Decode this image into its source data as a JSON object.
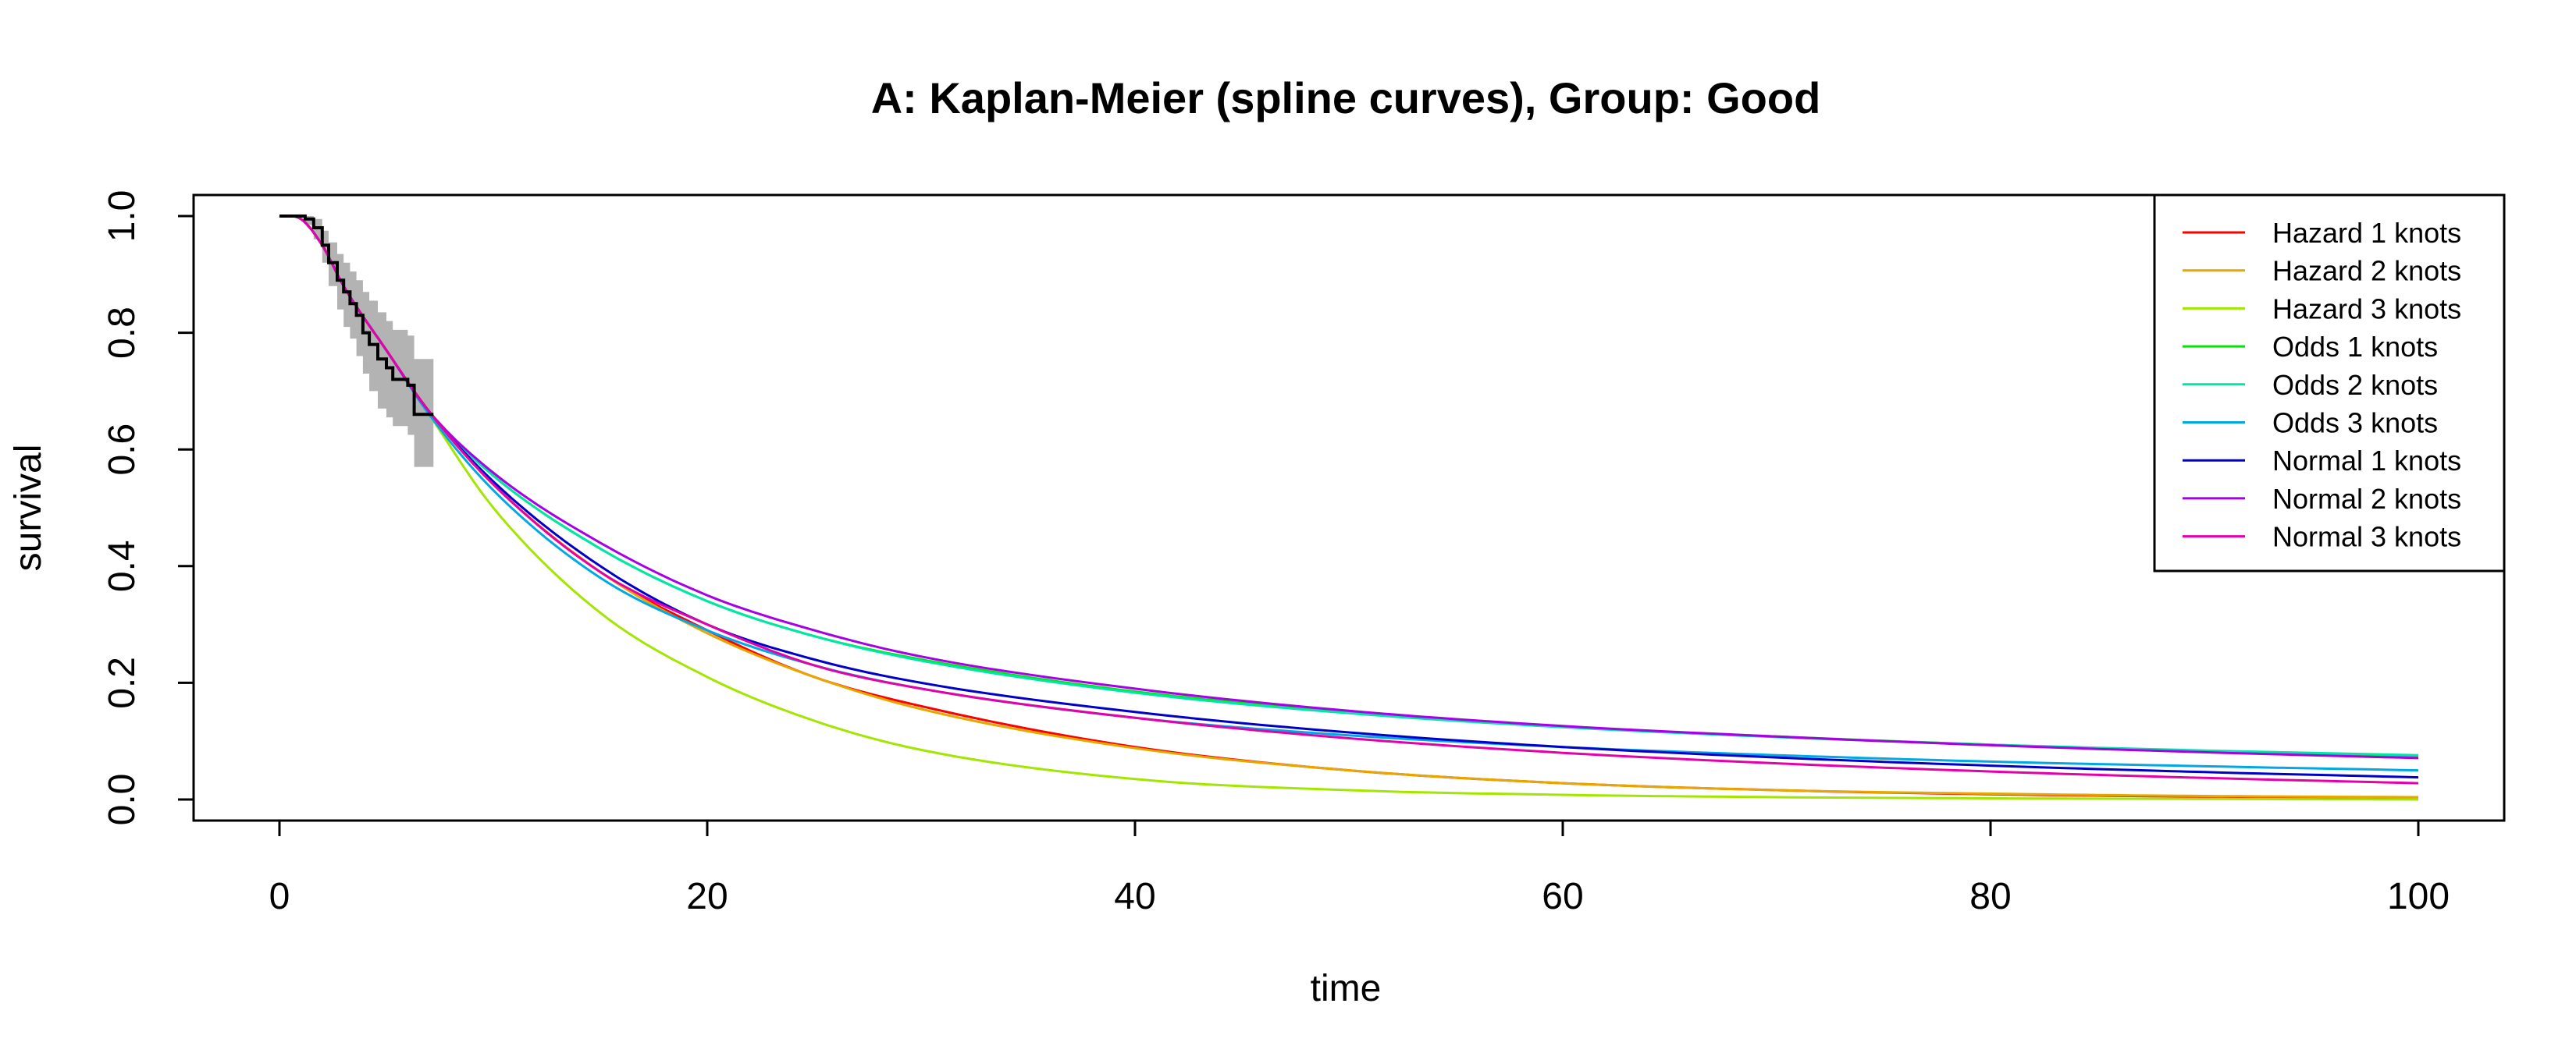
{
  "chart_data": {
    "type": "line",
    "title": "A: Kaplan-Meier (spline curves), Group: Good",
    "xlabel": "time",
    "ylabel": "survival",
    "xlim": [
      0,
      100
    ],
    "ylim": [
      0,
      1
    ],
    "x_ticks": [
      "0",
      "20",
      "40",
      "60",
      "80",
      "100"
    ],
    "y_ticks": [
      "0.0",
      "0.2",
      "0.4",
      "0.6",
      "0.8",
      "1.0"
    ],
    "legend_position": "top-right",
    "grid": false,
    "km": {
      "color": "#000000",
      "ci_color": "#b3b3b3",
      "steps": [
        [
          0,
          1.0
        ],
        [
          1.2,
          0.995
        ],
        [
          1.6,
          0.98
        ],
        [
          2.0,
          0.95
        ],
        [
          2.3,
          0.92
        ],
        [
          2.7,
          0.89
        ],
        [
          3.0,
          0.87
        ],
        [
          3.3,
          0.85
        ],
        [
          3.6,
          0.83
        ],
        [
          3.9,
          0.8
        ],
        [
          4.2,
          0.78
        ],
        [
          4.6,
          0.755
        ],
        [
          5.0,
          0.74
        ],
        [
          5.3,
          0.72
        ],
        [
          6.0,
          0.71
        ],
        [
          6.3,
          0.66
        ],
        [
          7.2,
          0.66
        ]
      ],
      "ci_lower": [
        [
          0,
          1.0
        ],
        [
          1.2,
          0.985
        ],
        [
          1.6,
          0.96
        ],
        [
          2.0,
          0.92
        ],
        [
          2.3,
          0.88
        ],
        [
          2.7,
          0.84
        ],
        [
          3.0,
          0.81
        ],
        [
          3.3,
          0.79
        ],
        [
          3.6,
          0.76
        ],
        [
          3.9,
          0.73
        ],
        [
          4.2,
          0.7
        ],
        [
          4.6,
          0.67
        ],
        [
          5.0,
          0.655
        ],
        [
          5.3,
          0.64
        ],
        [
          6.0,
          0.625
        ],
        [
          6.3,
          0.57
        ],
        [
          7.2,
          0.57
        ]
      ],
      "ci_upper": [
        [
          0,
          1.0
        ],
        [
          1.2,
          1.0
        ],
        [
          1.6,
          0.995
        ],
        [
          2.0,
          0.975
        ],
        [
          2.3,
          0.955
        ],
        [
          2.7,
          0.935
        ],
        [
          3.0,
          0.92
        ],
        [
          3.3,
          0.905
        ],
        [
          3.6,
          0.89
        ],
        [
          3.9,
          0.87
        ],
        [
          4.2,
          0.855
        ],
        [
          4.6,
          0.835
        ],
        [
          5.0,
          0.82
        ],
        [
          5.3,
          0.805
        ],
        [
          6.0,
          0.795
        ],
        [
          6.3,
          0.755
        ],
        [
          7.2,
          0.755
        ]
      ]
    },
    "x": [
      0,
      1,
      2,
      3,
      5,
      7,
      10,
      15,
      20,
      25,
      30,
      40,
      50,
      60,
      70,
      80,
      90,
      100
    ],
    "series": [
      {
        "name": "Hazard 1 knots",
        "color": "#ff0000",
        "values": [
          1.0,
          0.995,
          0.95,
          0.88,
          0.77,
          0.665,
          0.54,
          0.39,
          0.29,
          0.21,
          0.16,
          0.09,
          0.05,
          0.028,
          0.016,
          0.009,
          0.005,
          0.003
        ]
      },
      {
        "name": "Hazard 2 knots",
        "color": "#e6a800",
        "values": [
          1.0,
          0.995,
          0.95,
          0.88,
          0.77,
          0.665,
          0.54,
          0.39,
          0.285,
          0.21,
          0.155,
          0.088,
          0.05,
          0.028,
          0.016,
          0.01,
          0.006,
          0.004
        ]
      },
      {
        "name": "Hazard 3 knots",
        "color": "#a3e600",
        "values": [
          1.0,
          0.995,
          0.95,
          0.88,
          0.77,
          0.66,
          0.5,
          0.32,
          0.21,
          0.135,
          0.085,
          0.035,
          0.016,
          0.008,
          0.004,
          0.002,
          0.001,
          0.0
        ]
      },
      {
        "name": "Odds 1 knots",
        "color": "#00e600",
        "values": [
          1.0,
          0.995,
          0.95,
          0.88,
          0.77,
          0.665,
          0.555,
          0.43,
          0.34,
          0.28,
          0.24,
          0.185,
          0.15,
          0.125,
          0.108,
          0.094,
          0.083,
          0.074
        ]
      },
      {
        "name": "Odds 2 knots",
        "color": "#00e6a8",
        "values": [
          1.0,
          0.995,
          0.95,
          0.88,
          0.77,
          0.665,
          0.555,
          0.43,
          0.34,
          0.28,
          0.238,
          0.183,
          0.148,
          0.124,
          0.107,
          0.094,
          0.084,
          0.076
        ]
      },
      {
        "name": "Odds 3 knots",
        "color": "#00a8e6",
        "values": [
          1.0,
          0.995,
          0.95,
          0.88,
          0.77,
          0.66,
          0.53,
          0.38,
          0.29,
          0.23,
          0.19,
          0.14,
          0.11,
          0.09,
          0.076,
          0.065,
          0.057,
          0.05
        ]
      },
      {
        "name": "Normal 1 knots",
        "color": "#0000cc",
        "values": [
          1.0,
          0.995,
          0.95,
          0.88,
          0.77,
          0.665,
          0.545,
          0.4,
          0.3,
          0.24,
          0.2,
          0.15,
          0.115,
          0.09,
          0.072,
          0.058,
          0.047,
          0.038
        ]
      },
      {
        "name": "Normal 2 knots",
        "color": "#a800e6",
        "values": [
          1.0,
          0.995,
          0.95,
          0.88,
          0.77,
          0.665,
          0.56,
          0.44,
          0.35,
          0.29,
          0.245,
          0.19,
          0.152,
          0.126,
          0.108,
          0.093,
          0.081,
          0.071
        ]
      },
      {
        "name": "Normal 3 knots",
        "color": "#e600a8",
        "values": [
          1.0,
          0.995,
          0.95,
          0.88,
          0.77,
          0.665,
          0.54,
          0.39,
          0.3,
          0.23,
          0.19,
          0.14,
          0.105,
          0.08,
          0.062,
          0.048,
          0.037,
          0.028
        ]
      }
    ]
  }
}
